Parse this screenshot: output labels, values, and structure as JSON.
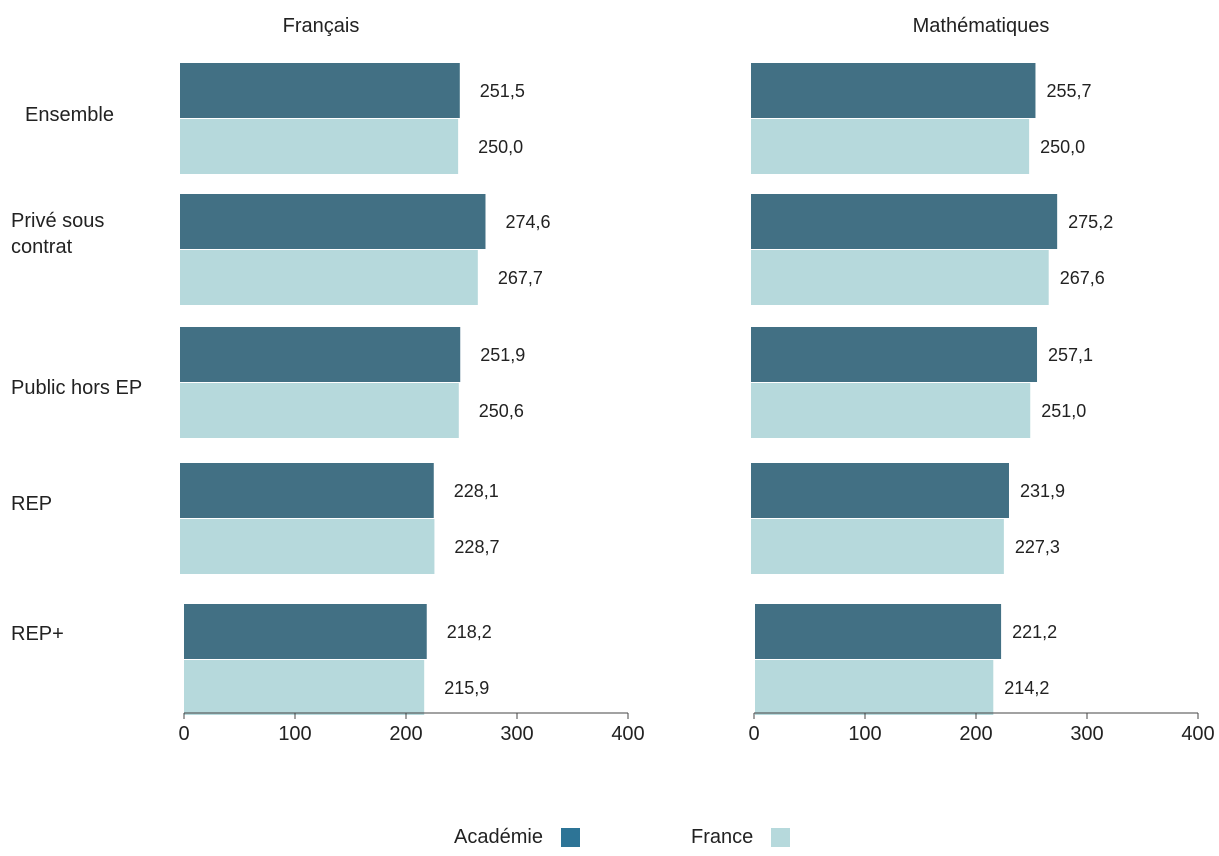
{
  "chart_data": {
    "type": "bar",
    "orientation": "horizontal",
    "categories": [
      "Ensemble",
      "Privé sous contrat",
      "Public hors EP",
      "REP",
      "REP+"
    ],
    "category_lines": [
      [
        "Ensemble"
      ],
      [
        "Privé sous",
        "contrat"
      ],
      [
        "Public hors EP"
      ],
      [
        "REP"
      ],
      [
        "REP+"
      ]
    ],
    "xlim": [
      0,
      400
    ],
    "ticks": [
      0,
      100,
      200,
      300,
      400
    ],
    "panels": [
      {
        "title": "Français",
        "series": [
          {
            "name": "Académie",
            "values": [
              251.5,
              274.6,
              251.9,
              228.1,
              218.2
            ],
            "labels": [
              "251,5",
              "274,6",
              "251,9",
              "228,1",
              "218,2"
            ]
          },
          {
            "name": "France",
            "values": [
              250.0,
              267.7,
              250.6,
              228.7,
              215.9
            ],
            "labels": [
              "250,0",
              "267,7",
              "250,6",
              "228,7",
              "215,9"
            ]
          }
        ]
      },
      {
        "title": "Mathématiques",
        "series": [
          {
            "name": "Académie",
            "values": [
              255.7,
              275.2,
              257.1,
              231.9,
              221.2
            ],
            "labels": [
              "255,7",
              "275,2",
              "257,1",
              "231,9",
              "221,2"
            ]
          },
          {
            "name": "France",
            "values": [
              250.0,
              267.6,
              251.0,
              227.3,
              214.2
            ],
            "labels": [
              "250,0",
              "267,6",
              "251,0",
              "227,3",
              "214,2"
            ]
          }
        ]
      }
    ],
    "legend": [
      "Académie",
      "France"
    ],
    "legend_position": "bottom"
  },
  "colors": {
    "academie_bar": "#427084",
    "france_bar": "#b6d9dc",
    "academie_legend": "#2d7496",
    "france_legend": "#b6d9dc",
    "axis": "#444444"
  }
}
